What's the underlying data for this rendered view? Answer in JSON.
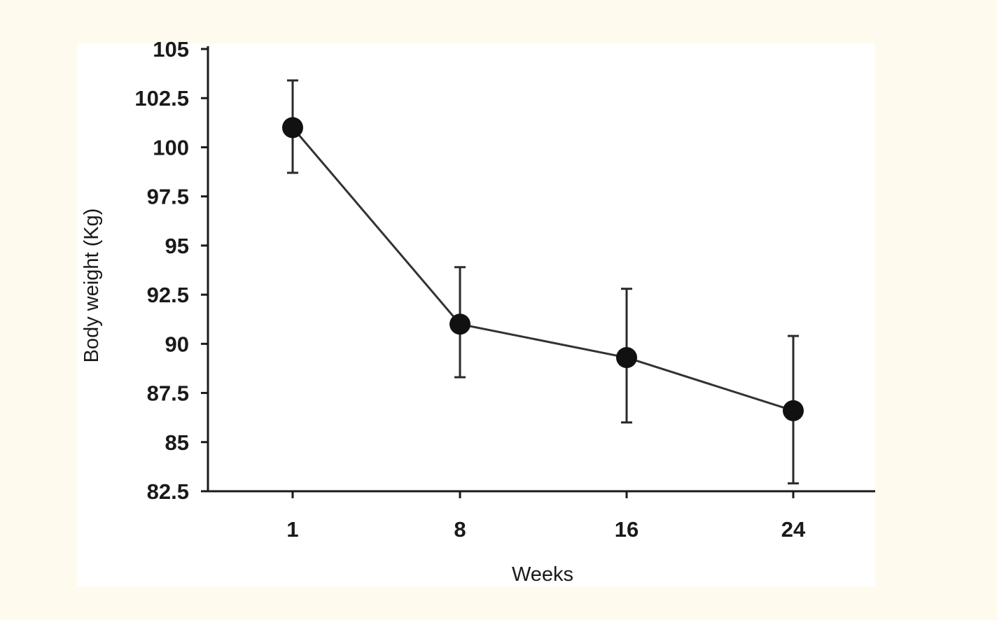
{
  "chart_data": {
    "type": "line",
    "title": "",
    "xlabel": "Weeks",
    "ylabel": "Body weight (Kg)",
    "categories": [
      "1",
      "8",
      "16",
      "24"
    ],
    "series": [
      {
        "name": "Body weight",
        "values": [
          101.0,
          91.0,
          89.3,
          86.6
        ],
        "error_low": [
          98.7,
          88.3,
          86.0,
          82.9
        ],
        "error_high": [
          103.4,
          93.9,
          92.8,
          90.4
        ]
      }
    ],
    "yticks": [
      "82.5",
      "85",
      "87.5",
      "90",
      "92.5",
      "95",
      "97.5",
      "100",
      "102.5",
      "105"
    ],
    "ylim": [
      82.5,
      105
    ],
    "grid": false,
    "legend": "none"
  }
}
